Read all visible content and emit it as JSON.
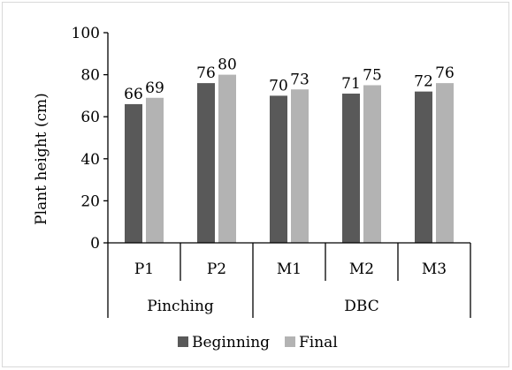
{
  "chart_data": {
    "type": "bar",
    "categories": [
      "P1",
      "P2",
      "M1",
      "M2",
      "M3"
    ],
    "groups": [
      {
        "label": "Pinching",
        "categories": [
          "P1",
          "P2"
        ]
      },
      {
        "label": "DBC",
        "categories": [
          "M1",
          "M2",
          "M3"
        ]
      }
    ],
    "series": [
      {
        "name": "Beginning",
        "values": [
          66,
          76,
          70,
          71,
          72
        ],
        "color": "#595959"
      },
      {
        "name": "Final",
        "values": [
          69,
          80,
          73,
          75,
          76
        ],
        "color": "#b3b3b3"
      }
    ],
    "ylabel": "Plant height (cm)",
    "xlabel": "",
    "ylim": [
      0,
      100
    ],
    "yticks": [
      0,
      20,
      40,
      60,
      80,
      100
    ],
    "grid": false,
    "legend_position": "bottom"
  }
}
